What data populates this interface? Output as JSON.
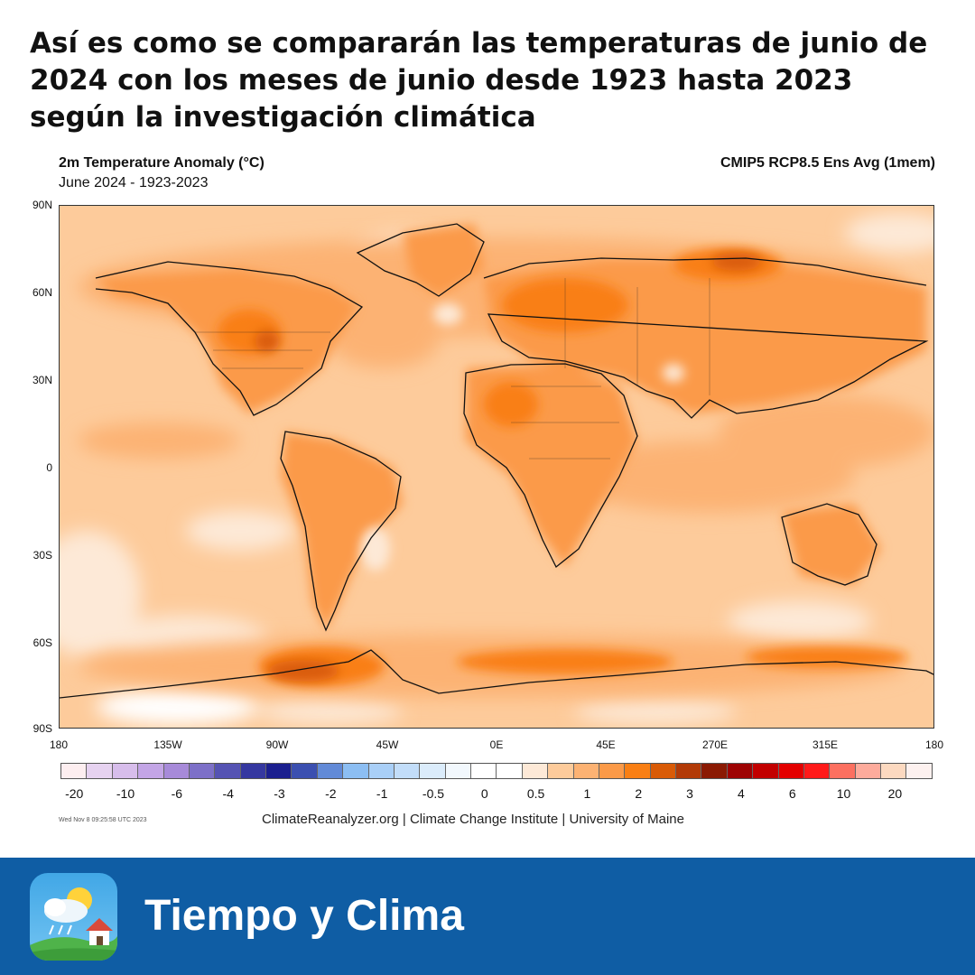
{
  "headline": "Así es como se compararán las temperaturas de junio de 2024 con los meses de junio desde 1923 hasta 2023 según la investigación climática",
  "map": {
    "title": "2m Temperature Anomaly (°C)",
    "subtitle": "June 2024 - 1923-2023",
    "model": "CMIP5 RCP8.5 Ens Avg (1mem)",
    "lat_labels": [
      "90N",
      "60N",
      "30N",
      "0",
      "30S",
      "60S",
      "90S"
    ],
    "lon_labels": [
      "180",
      "135W",
      "90W",
      "45W",
      "0E",
      "45E",
      "270E",
      "315E",
      "180"
    ],
    "colorbar": {
      "colors": [
        "#fdeef0",
        "#e6d2f0",
        "#d7bdeb",
        "#c3a5e6",
        "#a78ad9",
        "#7d70c8",
        "#5553b3",
        "#3538a0",
        "#1b1f8f",
        "#3b4fb0",
        "#628ad7",
        "#8cbef3",
        "#a9cff7",
        "#c2ddf9",
        "#dbecfb",
        "#f2f8fd",
        "#ffffff",
        "#ffffff",
        "#fde9d7",
        "#fdcb9b",
        "#fcb273",
        "#fb9a48",
        "#f97f14",
        "#d95b07",
        "#b23a07",
        "#8b1a03",
        "#9e0303",
        "#c20000",
        "#e30000",
        "#ff1a1a",
        "#fc7060",
        "#fdab9c",
        "#fcd9c0",
        "#fdf1ef"
      ],
      "labels": [
        "-20",
        "-10",
        "-6",
        "-4",
        "-3",
        "-2",
        "-1",
        "-0.5",
        "0",
        "0.5",
        "1",
        "2",
        "3",
        "4",
        "6",
        "10",
        "20"
      ]
    },
    "timestamp": "Wed Nov  8 09:25:58 UTC 2023",
    "credit": "ClimateReanalyzer.org | Climate Change Institute | University of Maine"
  },
  "footer": {
    "brand": "Tiempo y Clima",
    "icon": "weather-app-icon"
  }
}
